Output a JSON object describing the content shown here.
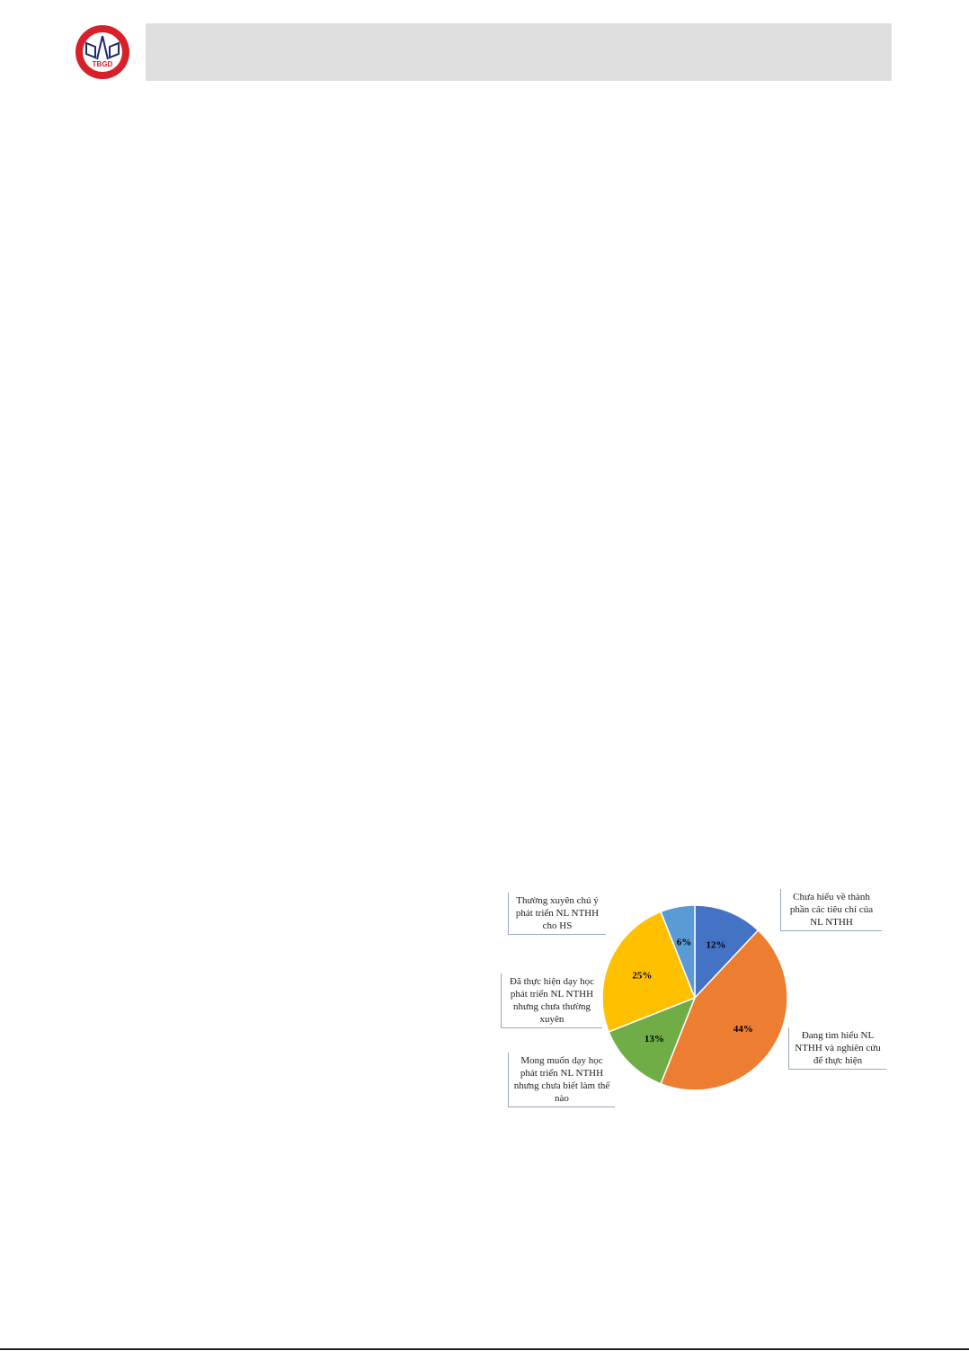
{
  "header": {
    "logo_text": "TBGD"
  },
  "chart_data": {
    "type": "pie",
    "slices": [
      {
        "label": "Chưa hiểu về thành phần các tiêu chí của NL NTHH",
        "value": 12,
        "display": "12%",
        "color": "#4472c4"
      },
      {
        "label": "Đang tìm hiểu NL NTHH và nghiên cứu để thực hiện",
        "value": 44,
        "display": "44%",
        "color": "#ed7d31"
      },
      {
        "label": "Mong muốn dạy học phát triển NL NTHH nhưng chưa biết làm thế nào",
        "value": 13,
        "display": "13%",
        "color": "#70ad47"
      },
      {
        "label": "Đã thực hiện dạy học phát triển NL NTHH nhưng chưa thường xuyên",
        "value": 25,
        "display": "25%",
        "color": "#ffc000"
      },
      {
        "label": "Thường xuyên chú ý phát triển NL NTHH cho HS",
        "value": 6,
        "display": "6%",
        "color": "#5b9bd5"
      }
    ]
  }
}
